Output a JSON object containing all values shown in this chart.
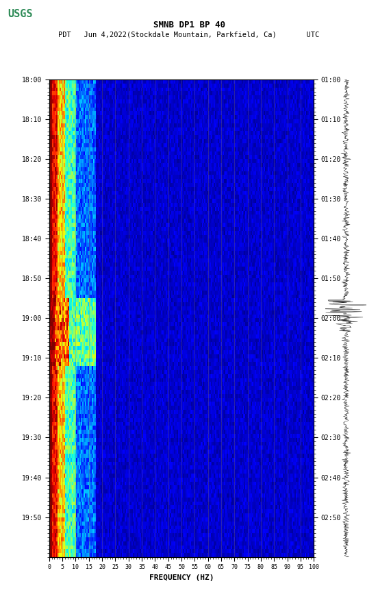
{
  "title_line1": "SMNB DP1 BP 40",
  "title_line2": "PDT   Jun 4,2022(Stockdale Mountain, Parkfield, Ca)       UTC",
  "xlabel": "FREQUENCY (HZ)",
  "freq_min": 0,
  "freq_max": 100,
  "freq_ticks": [
    0,
    5,
    10,
    15,
    20,
    25,
    30,
    35,
    40,
    45,
    50,
    55,
    60,
    65,
    70,
    75,
    80,
    85,
    90,
    95,
    100
  ],
  "time_left_labels": [
    "18:00",
    "18:10",
    "18:20",
    "18:30",
    "18:40",
    "18:50",
    "19:00",
    "19:10",
    "19:20",
    "19:30",
    "19:40",
    "19:50"
  ],
  "time_right_labels": [
    "01:00",
    "01:10",
    "01:20",
    "01:30",
    "01:40",
    "01:50",
    "02:00",
    "02:10",
    "02:20",
    "02:30",
    "02:40",
    "02:50"
  ],
  "n_times": 120,
  "n_freqs": 200,
  "background_color": "#ffffff",
  "colormap": "jet"
}
